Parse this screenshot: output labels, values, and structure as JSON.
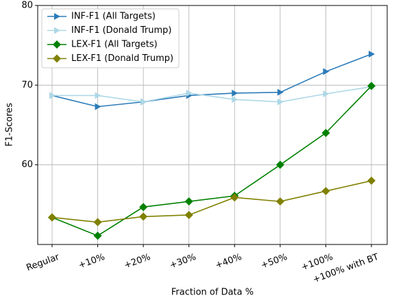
{
  "chart_data": {
    "type": "line",
    "xlabel": "Fraction of Data %",
    "ylabel": "F1-Scores",
    "categories": [
      "Regular",
      "+10%",
      "+20%",
      "+30%",
      "+40%",
      "+50%",
      "+100%",
      "+100% with BT"
    ],
    "series": [
      {
        "name": "INF-F1 (All Targets)",
        "color": "#2b7bb9",
        "marker": "triangle-right",
        "values": [
          68.7,
          67.3,
          67.9,
          68.7,
          69.0,
          69.1,
          71.7,
          73.9
        ]
      },
      {
        "name": "INF-F1 (Donald Trump)",
        "color": "#add8e6",
        "marker": "triangle-right",
        "values": [
          68.7,
          68.7,
          67.9,
          69.0,
          68.2,
          67.9,
          68.9,
          69.8
        ]
      },
      {
        "name": "LEX-F1 (All Targets)",
        "color": "#008000",
        "marker": "diamond",
        "values": [
          53.4,
          51.1,
          54.7,
          55.4,
          56.1,
          60.0,
          64.0,
          69.9
        ]
      },
      {
        "name": "LEX-F1 (Donald Trump)",
        "color": "#808000",
        "marker": "diamond",
        "values": [
          53.4,
          52.8,
          53.5,
          53.7,
          55.9,
          55.4,
          56.7,
          58.0
        ]
      }
    ],
    "ylim": [
      50,
      80
    ],
    "yticks": [
      60,
      70,
      80
    ],
    "grid": true,
    "legend": "upper-left"
  }
}
